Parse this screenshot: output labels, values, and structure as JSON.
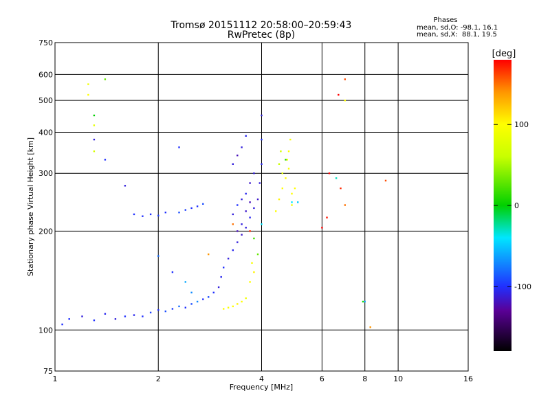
{
  "chart_data": {
    "type": "scatter",
    "title": "Tromsø 20151112 20:58:00–20:59:43",
    "subtitle": "RwPretec (8p)",
    "xlabel": "Frequency [MHz]",
    "ylabel": "Stationary phase Virtual Height [km]",
    "x_scale": "log",
    "y_scale": "log",
    "xlim": [
      1,
      16
    ],
    "ylim": [
      75,
      750
    ],
    "grid": true,
    "x_ticks": [
      1,
      2,
      4,
      6,
      8,
      10,
      16
    ],
    "x_tick_labels": [
      "1",
      "2",
      "4",
      "6",
      "8",
      "10",
      "16"
    ],
    "y_ticks": [
      75,
      100,
      200,
      300,
      400,
      500,
      600,
      750
    ],
    "y_tick_labels": [
      "75",
      "100",
      "200",
      "300",
      "400",
      "500",
      "600",
      "750"
    ],
    "stats": {
      "heading": "Phases",
      "line_o": "mean, sd,O: -98.1, 16.1",
      "line_x": "mean, sd,X:  88.1, 19.5"
    },
    "colorbar": {
      "unit": "[deg]",
      "range": [
        -180,
        180
      ],
      "ticks": [
        100,
        0,
        -100
      ],
      "tick_labels": [
        "100",
        "0",
        "-100"
      ]
    },
    "phase_colors": {
      "-180": "#000000",
      "-130": "#5a0096",
      "-100": "#2030ff",
      "-40": "#00e6ff",
      "0": "#00d000",
      "60": "#c8ff00",
      "100": "#ffff00",
      "140": "#ff9600",
      "180": "#ff0000"
    },
    "series": [
      {
        "values": [
          [
            1.05,
            104,
            -100
          ],
          [
            1.1,
            108,
            -100
          ],
          [
            1.2,
            110,
            -110
          ],
          [
            1.3,
            107,
            -100
          ],
          [
            1.4,
            112,
            -105
          ],
          [
            1.5,
            108,
            -110
          ],
          [
            1.6,
            110,
            -100
          ],
          [
            1.7,
            111,
            -105
          ],
          [
            1.8,
            110,
            -100
          ],
          [
            1.9,
            113,
            -95
          ],
          [
            2.0,
            115,
            -100
          ],
          [
            2.1,
            114,
            -90
          ],
          [
            2.2,
            116,
            -95
          ],
          [
            2.3,
            118,
            -80
          ],
          [
            2.4,
            117,
            -100
          ],
          [
            2.5,
            120,
            -90
          ],
          [
            2.6,
            122,
            -70
          ],
          [
            2.7,
            124,
            -100
          ],
          [
            2.8,
            126,
            -90
          ],
          [
            2.9,
            130,
            -100
          ],
          [
            3.0,
            135,
            -110
          ],
          [
            3.05,
            145,
            -105
          ],
          [
            3.1,
            155,
            -100
          ],
          [
            3.2,
            165,
            -110
          ],
          [
            3.3,
            175,
            -105
          ],
          [
            3.4,
            185,
            -110
          ],
          [
            3.5,
            195,
            -115
          ],
          [
            3.6,
            205,
            -110
          ],
          [
            3.7,
            220,
            -105
          ],
          [
            3.8,
            235,
            -110
          ],
          [
            3.9,
            250,
            -115
          ],
          [
            3.95,
            280,
            -110
          ],
          [
            4.0,
            320,
            -105
          ],
          [
            4.0,
            380,
            -100
          ],
          [
            4.0,
            450,
            -110
          ],
          [
            1.8,
            222,
            -100
          ],
          [
            1.9,
            225,
            -100
          ],
          [
            2.0,
            223,
            -95
          ],
          [
            2.1,
            228,
            -100
          ],
          [
            2.3,
            228,
            -90
          ],
          [
            2.4,
            232,
            -95
          ],
          [
            2.5,
            235,
            -100
          ],
          [
            2.6,
            238,
            -100
          ],
          [
            2.7,
            242,
            -90
          ],
          [
            3.3,
            225,
            -110
          ],
          [
            3.4,
            240,
            -100
          ],
          [
            3.5,
            250,
            -110
          ],
          [
            3.6,
            260,
            -105
          ],
          [
            3.7,
            280,
            -115
          ],
          [
            3.8,
            300,
            -110
          ],
          [
            3.3,
            320,
            -110
          ],
          [
            3.4,
            340,
            -120
          ],
          [
            3.5,
            360,
            -110
          ],
          [
            3.6,
            390,
            -105
          ],
          [
            3.4,
            200,
            -120
          ],
          [
            3.5,
            210,
            -110
          ],
          [
            3.6,
            230,
            -115
          ],
          [
            3.7,
            245,
            -120
          ],
          [
            1.3,
            380,
            -110
          ],
          [
            1.4,
            330,
            -100
          ],
          [
            1.6,
            275,
            -110
          ],
          [
            1.7,
            225,
            -100
          ],
          [
            2.3,
            360,
            -100
          ],
          [
            2.0,
            168,
            -80
          ],
          [
            2.2,
            150,
            -100
          ],
          [
            2.4,
            140,
            -60
          ],
          [
            2.5,
            130,
            -70
          ]
        ]
      },
      {
        "values": [
          [
            3.1,
            116,
            100
          ],
          [
            3.2,
            117,
            95
          ],
          [
            3.3,
            118,
            100
          ],
          [
            3.4,
            120,
            105
          ],
          [
            3.5,
            122,
            100
          ],
          [
            3.6,
            125,
            90
          ],
          [
            3.7,
            140,
            100
          ],
          [
            3.8,
            150,
            105
          ],
          [
            3.75,
            160,
            95
          ],
          [
            4.4,
            230,
            100
          ],
          [
            4.5,
            250,
            105
          ],
          [
            4.6,
            270,
            100
          ],
          [
            4.7,
            290,
            100
          ],
          [
            4.8,
            310,
            95
          ],
          [
            4.75,
            330,
            100
          ],
          [
            4.8,
            350,
            100
          ],
          [
            4.85,
            380,
            95
          ],
          [
            4.9,
            260,
            100
          ],
          [
            4.9,
            240,
            90
          ],
          [
            5.0,
            270,
            100
          ],
          [
            4.6,
            300,
            80
          ],
          [
            4.5,
            320,
            60
          ],
          [
            4.55,
            350,
            70
          ],
          [
            1.25,
            560,
            90
          ],
          [
            1.25,
            520,
            100
          ],
          [
            1.3,
            420,
            80
          ],
          [
            1.3,
            350,
            70
          ],
          [
            7.0,
            500,
            100
          ],
          [
            8.3,
            102,
            140
          ],
          [
            7.0,
            580,
            160
          ]
        ]
      },
      {
        "values": [
          [
            4.9,
            245,
            -40
          ],
          [
            5.1,
            245,
            -50
          ],
          [
            4.7,
            330,
            10
          ],
          [
            4.0,
            210,
            -40
          ],
          [
            3.8,
            190,
            20
          ],
          [
            3.9,
            170,
            30
          ],
          [
            1.3,
            450,
            0
          ],
          [
            1.4,
            580,
            30
          ],
          [
            6.6,
            290,
            -30
          ],
          [
            7.9,
            122,
            10
          ],
          [
            8.0,
            122,
            -60
          ]
        ]
      },
      {
        "values": [
          [
            6.3,
            300,
            180
          ],
          [
            6.8,
            270,
            170
          ],
          [
            7.0,
            240,
            150
          ],
          [
            6.2,
            220,
            175
          ],
          [
            6.0,
            205,
            185
          ],
          [
            9.2,
            285,
            160
          ],
          [
            2.8,
            170,
            140
          ],
          [
            3.3,
            210,
            150
          ],
          [
            3.7,
            200,
            170
          ],
          [
            6.7,
            520,
            190
          ]
        ]
      }
    ]
  }
}
